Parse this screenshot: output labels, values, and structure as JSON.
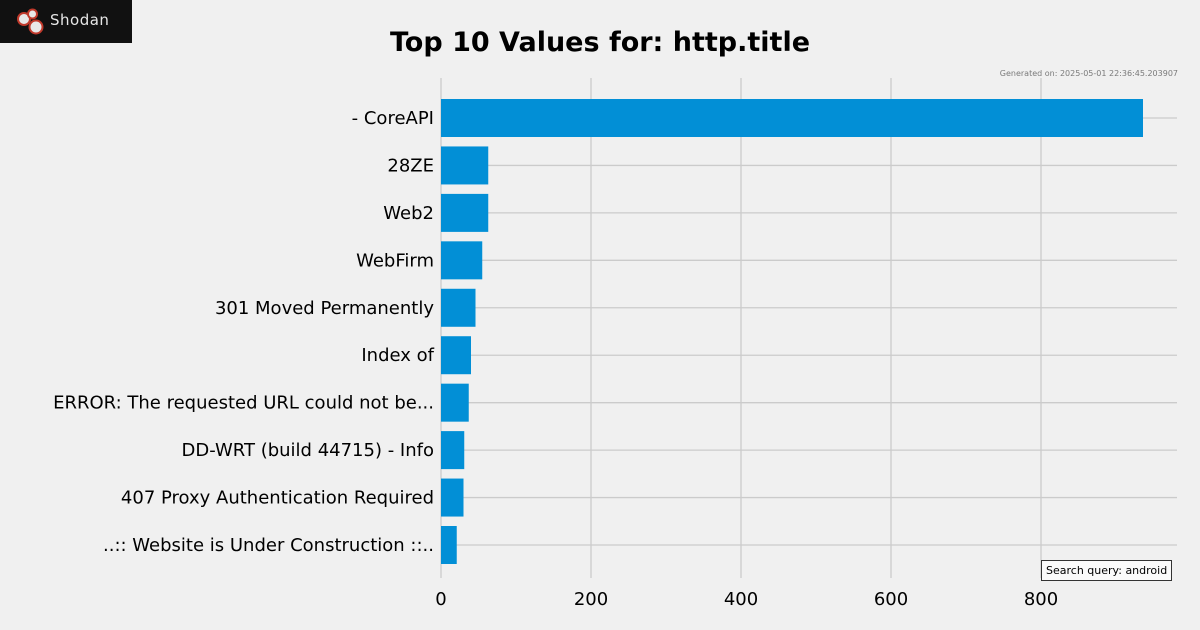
{
  "brand": {
    "name": "Shodan"
  },
  "header": {
    "generated": "Generated on: 2025-05-01 22:36:45.203907"
  },
  "query_label": "Search query: android",
  "colors": {
    "bar": "#028fd6",
    "grid": "#cbcbcb",
    "background": "#f0f0f0"
  },
  "chart_data": {
    "type": "bar",
    "orientation": "horizontal",
    "title": "Top 10 Values for: http.title",
    "categories": [
      "- CoreAPI",
      "28ZE",
      "Web2",
      "WebFirm",
      "301 Moved Permanently",
      "Index of",
      "ERROR: The requested URL could not be...",
      "DD-WRT (build 44715) - Info",
      "407 Proxy Authentication Required",
      "..:: Website is Under Construction ::.."
    ],
    "values": [
      936,
      63,
      63,
      55,
      46,
      40,
      37,
      31,
      30,
      21
    ],
    "xlim": [
      0,
      980
    ],
    "xticks": [
      "0",
      "200",
      "400",
      "600",
      "800"
    ],
    "grid": true
  }
}
